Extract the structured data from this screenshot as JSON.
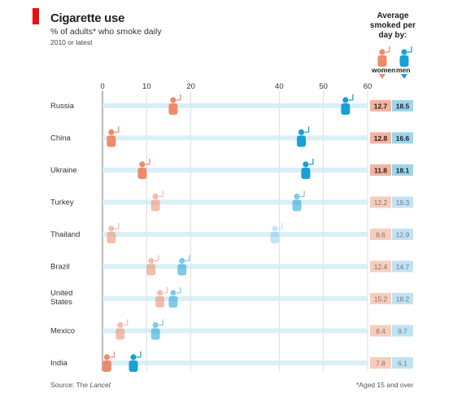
{
  "header": {
    "title": "Cigarette use",
    "subtitle": "% of adults* who smoke daily",
    "note": "2010 or latest"
  },
  "legend": {
    "avg_title": "Average smoked per day by:",
    "women": "women",
    "men": "men"
  },
  "footer": {
    "source_prefix": "Source: The ",
    "source_name": "Lancet",
    "footnote": "*Aged 15 and over"
  },
  "colors": {
    "women": "#ee8a6a",
    "men": "#1aa0d4",
    "women_light": "#f8cdbd",
    "men_light": "#bfe3f3",
    "bar": "#cfe9f6",
    "women_box": "#f2b49e",
    "men_box": "#9dd5ee"
  },
  "chart_data": {
    "type": "dot",
    "xlim": [
      0,
      60
    ],
    "x_ticks": [
      0,
      10,
      20,
      40,
      50,
      60
    ],
    "categories": [
      "Russia",
      "China",
      "Ukraine",
      "Turkey",
      "Thailand",
      "Brazil",
      "United States",
      "Mexico",
      "India"
    ],
    "series": [
      {
        "name": "women",
        "values": [
          16,
          2,
          9,
          12,
          2,
          11,
          13,
          4,
          1
        ]
      },
      {
        "name": "men",
        "values": [
          55,
          45,
          46,
          44,
          39,
          18,
          16,
          12,
          7
        ]
      }
    ],
    "avg_per_day": {
      "women": [
        "12.7",
        "12.8",
        "11.8",
        "12.2",
        "8.6",
        "12.4",
        "15.2",
        "8.4",
        "7.8"
      ],
      "men": [
        "18.5",
        "16.6",
        "18.1",
        "19.3",
        "12.9",
        "14.7",
        "18.2",
        "9.7",
        "6.1"
      ]
    }
  }
}
